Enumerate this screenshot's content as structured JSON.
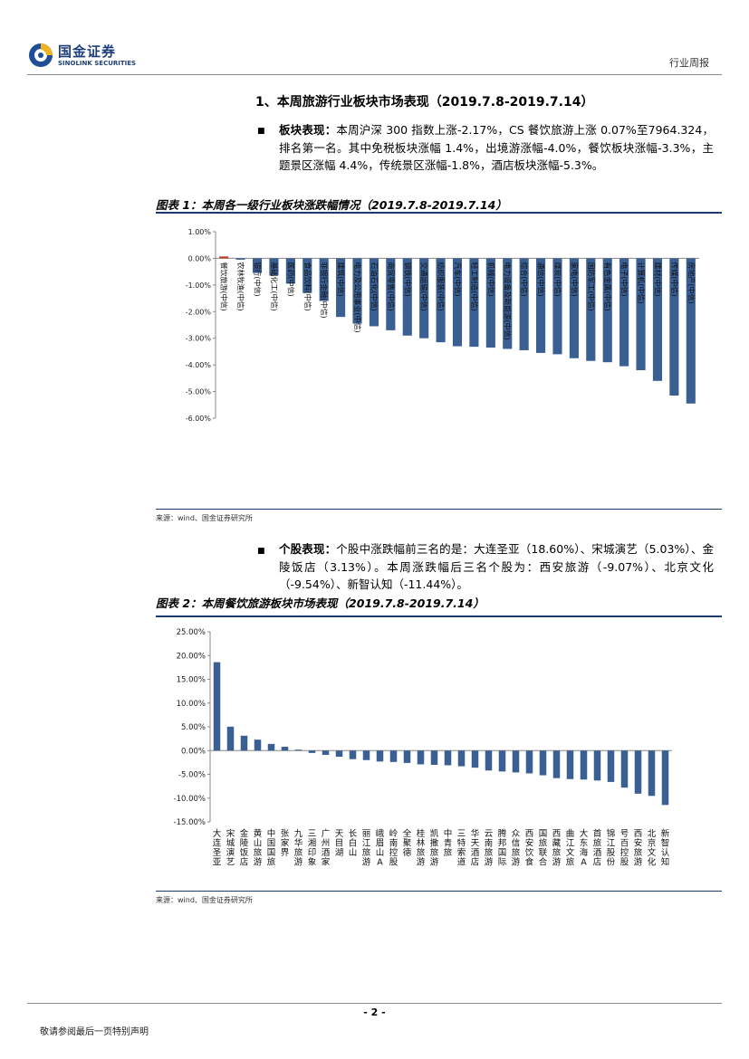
{
  "header": {
    "logo_cn": "国金证券",
    "logo_en": "SINOLINK SECURITIES",
    "doc_type": "行业周报"
  },
  "section": {
    "title": "1、本周旅游行业板块市场表现（2019.7.8-2019.7.14）"
  },
  "bullets": [
    {
      "label": "板块表现：",
      "text": "本周沪深 300 指数上涨-2.17%，CS 餐饮旅游上涨 0.07%至7964.324，排名第一名。其中免税板块涨幅 1.4%，出境游涨幅-4.0%，餐饮板块涨幅-3.3%，主题景区涨幅 4.4%，传统景区涨幅-1.8%，酒店板块涨幅-5.3%。"
    },
    {
      "label": "个股表现：",
      "text": "个股中涨跌幅前三名的是：大连圣亚（18.60%）、宋城演艺（5.03%）、金陵饭店（3.13%）。本周涨跌幅后三名个股为：西安旅游（-9.07%）、北京文化（-9.54%）、新智认知（-11.44%）。"
    }
  ],
  "figures": [
    {
      "title": "图表 1：本周各一级行业板块涨跌幅情况（2019.7.8-2019.7.14）",
      "source": "来源：wind、国金证券研究所"
    },
    {
      "title": "图表 2：本周餐饮旅游板块市场表现（2019.7.8-2019.7.14）",
      "source": "来源：wind、国金证券研究所"
    }
  ],
  "chart_data": [
    {
      "type": "bar",
      "categories": [
        "餐饮旅游(中信)",
        "农林牧渔(中信)",
        "银行(中信)",
        "基础化工(中信)",
        "医药(中信)",
        "食品饮料(中信)",
        "非银行金融(中信)",
        "建筑(中信)",
        "电力及公用事业(中信)",
        "石油石化(中信)",
        "商贸零售(中信)",
        "钢铁(中信)",
        "交通运输(中信)",
        "纺织服装(中信)",
        "汽车(中信)",
        "轻工制造(中信)",
        "机械(中信)",
        "电力设备及新能源(中信)",
        "综合(中信)",
        "通信(中信)",
        "煤炭(中信)",
        "家电(中信)",
        "国防军工(中信)",
        "有色金属(中信)",
        "电子(中信)",
        "计算机(中信)",
        "建材(中信)",
        "传媒(中信)",
        "房地产(中信)"
      ],
      "values": [
        0.07,
        -0.05,
        -0.55,
        -0.65,
        -0.95,
        -1.3,
        -1.6,
        -2.2,
        -2.45,
        -2.55,
        -2.7,
        -2.9,
        -3.0,
        -3.15,
        -3.3,
        -3.32,
        -3.35,
        -3.4,
        -3.45,
        -3.55,
        -3.6,
        -3.75,
        -3.85,
        -3.9,
        -4.05,
        -4.2,
        -4.6,
        -5.15,
        -5.45
      ],
      "highlight_index": 0,
      "ylim": [
        -6.0,
        1.0
      ],
      "yticks": [
        "1.00%",
        "0.00%",
        "-1.00%",
        "-2.00%",
        "-3.00%",
        "-4.00%",
        "-5.00%",
        "-6.00%"
      ],
      "colors": {
        "bar": "#3a5f93",
        "highlight": "#c0392b"
      },
      "grid": false
    },
    {
      "type": "bar",
      "categories": [
        "大连圣亚",
        "宋城演艺",
        "金陵饭店",
        "黄山旅游",
        "中国国旅",
        "张家界",
        "九华旅游",
        "三湘印象",
        "广州酒家",
        "天目湖",
        "长白山",
        "丽江旅游",
        "峨眉山A",
        "岭南控股",
        "全聚德",
        "桂林旅游",
        "凯撒旅游",
        "中青旅",
        "三特索道",
        "华天酒店",
        "云南旅游",
        "腾邦国际",
        "众信旅游",
        "西安饮食",
        "国旅联合",
        "西藏旅游",
        "曲江文旅",
        "大东海A",
        "首旅酒店",
        "锦江股份",
        "号百控股",
        "西安旅游",
        "北京文化",
        "新智认知"
      ],
      "values": [
        18.6,
        5.03,
        3.13,
        2.3,
        1.4,
        0.8,
        0.2,
        -0.5,
        -0.9,
        -1.3,
        -1.8,
        -2.0,
        -2.3,
        -2.4,
        -2.6,
        -2.9,
        -3.0,
        -3.1,
        -3.3,
        -3.6,
        -4.2,
        -4.4,
        -4.6,
        -4.8,
        -5.2,
        -5.8,
        -6.0,
        -6.1,
        -6.3,
        -6.6,
        -7.8,
        -9.07,
        -9.54,
        -11.44
      ],
      "ylim": [
        -15.0,
        25.0
      ],
      "yticks": [
        "25.00%",
        "20.00%",
        "15.00%",
        "10.00%",
        "5.00%",
        "0.00%",
        "-5.00%",
        "-10.00%",
        "-15.00%"
      ],
      "colors": {
        "bar": "#3a5f93"
      },
      "grid": false
    }
  ],
  "footer": {
    "page_number": "- 2 -",
    "disclaimer": "敬请参阅最后一页特别声明"
  }
}
